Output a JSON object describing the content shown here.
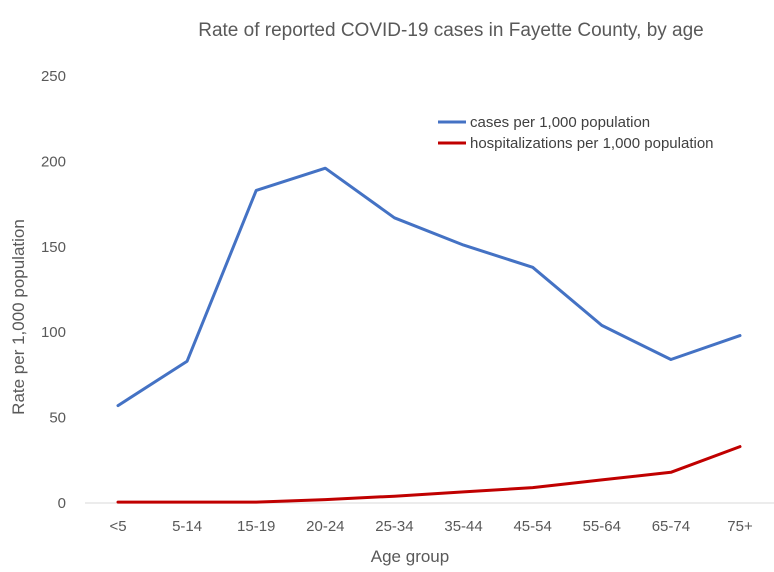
{
  "chart_data": {
    "type": "line",
    "title": "Rate of reported COVID-19 cases in Fayette County, by age",
    "xlabel": "Age group",
    "ylabel": "Rate per 1,000 population",
    "categories": [
      "<5",
      "5-14",
      "15-19",
      "20-24",
      "25-34",
      "35-44",
      "45-54",
      "55-64",
      "65-74",
      "75+"
    ],
    "yticks": [
      "0",
      "50",
      "100",
      "150",
      "200",
      "250"
    ],
    "ylim": [
      0,
      250
    ],
    "grid": false,
    "legend_position": "top-right",
    "series": [
      {
        "name": "cases per 1,000 population",
        "color": "#4472C4",
        "values": [
          57,
          83,
          183,
          196,
          167,
          151,
          138,
          104,
          84,
          98
        ]
      },
      {
        "name": "hospitalizations per 1,000 population",
        "color": "#C00000",
        "values": [
          0.5,
          0.5,
          0.5,
          2,
          4,
          6.5,
          9,
          13.5,
          18,
          33
        ]
      }
    ]
  }
}
